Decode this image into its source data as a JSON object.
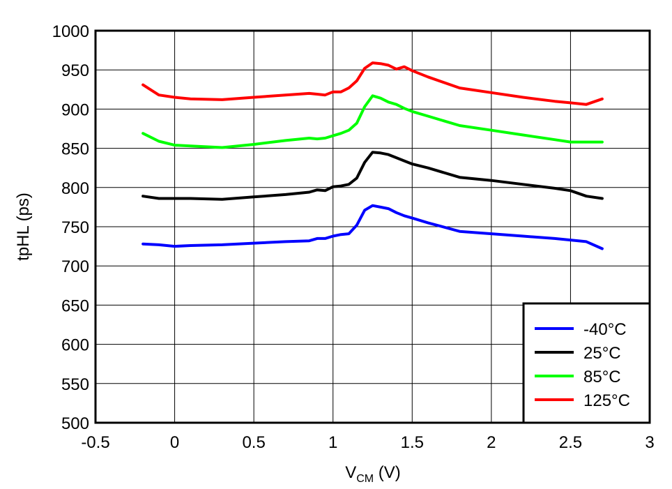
{
  "chart_data": {
    "type": "line",
    "xlabel_main": "V",
    "xlabel_sub": "CM",
    "xlabel_unit": " (V)",
    "ylabel": "tpHL (ps)",
    "xlim": [
      -0.5,
      3
    ],
    "ylim": [
      500,
      1000
    ],
    "xticks": [
      -0.5,
      0,
      0.5,
      1,
      1.5,
      2,
      2.5,
      3
    ],
    "xtick_labels": [
      "-0.5",
      "0",
      "0.5",
      "1",
      "1.5",
      "2",
      "2.5",
      "3"
    ],
    "yticks": [
      500,
      550,
      600,
      650,
      700,
      750,
      800,
      850,
      900,
      950,
      1000
    ],
    "ytick_labels": [
      "500",
      "550",
      "600",
      "650",
      "700",
      "750",
      "800",
      "850",
      "900",
      "950",
      "1000"
    ],
    "grid": true,
    "legend_position": "bottom-right",
    "series": [
      {
        "name": "-40°C",
        "color": "#0000ff",
        "x": [
          -0.2,
          -0.1,
          0,
          0.1,
          0.3,
          0.5,
          0.7,
          0.85,
          0.9,
          0.95,
          1.0,
          1.05,
          1.1,
          1.15,
          1.2,
          1.25,
          1.3,
          1.35,
          1.4,
          1.45,
          1.5,
          1.6,
          1.8,
          2.0,
          2.2,
          2.4,
          2.6,
          2.7
        ],
        "y": [
          728,
          727,
          725,
          726,
          727,
          729,
          731,
          732,
          735,
          735,
          738,
          740,
          741,
          752,
          771,
          777,
          775,
          773,
          768,
          764,
          761,
          755,
          744,
          741,
          738,
          735,
          731,
          722
        ]
      },
      {
        "name": "25°C",
        "color": "#000000",
        "x": [
          -0.2,
          -0.1,
          0,
          0.1,
          0.3,
          0.5,
          0.7,
          0.85,
          0.9,
          0.95,
          1.0,
          1.05,
          1.1,
          1.15,
          1.2,
          1.25,
          1.3,
          1.35,
          1.4,
          1.45,
          1.5,
          1.6,
          1.8,
          2.0,
          2.2,
          2.4,
          2.5,
          2.6,
          2.7
        ],
        "y": [
          789,
          786,
          786,
          786,
          785,
          788,
          791,
          794,
          797,
          796,
          801,
          802,
          804,
          812,
          832,
          845,
          844,
          842,
          838,
          834,
          830,
          825,
          813,
          809,
          804,
          799,
          796,
          789,
          786
        ]
      },
      {
        "name": "85°C",
        "color": "#00ff00",
        "x": [
          -0.2,
          -0.1,
          0,
          0.1,
          0.3,
          0.5,
          0.7,
          0.85,
          0.9,
          0.95,
          1.0,
          1.05,
          1.1,
          1.15,
          1.2,
          1.25,
          1.3,
          1.35,
          1.4,
          1.45,
          1.5,
          1.6,
          1.8,
          2.0,
          2.2,
          2.4,
          2.5,
          2.6,
          2.7
        ],
        "y": [
          869,
          859,
          854,
          853,
          851,
          855,
          860,
          863,
          862,
          863,
          866,
          869,
          873,
          882,
          903,
          917,
          914,
          909,
          906,
          901,
          897,
          891,
          879,
          873,
          867,
          861,
          858,
          858,
          858
        ]
      },
      {
        "name": "125°C",
        "color": "#ff0000",
        "x": [
          -0.2,
          -0.1,
          0,
          0.1,
          0.3,
          0.5,
          0.7,
          0.85,
          0.9,
          0.95,
          1.0,
          1.05,
          1.1,
          1.15,
          1.2,
          1.25,
          1.3,
          1.35,
          1.4,
          1.45,
          1.5,
          1.6,
          1.8,
          2.0,
          2.2,
          2.4,
          2.5,
          2.6,
          2.7
        ],
        "y": [
          931,
          918,
          915,
          913,
          912,
          915,
          918,
          920,
          919,
          918,
          922,
          922,
          927,
          936,
          952,
          959,
          958,
          956,
          951,
          954,
          949,
          941,
          927,
          921,
          915,
          910,
          908,
          906,
          913
        ]
      }
    ]
  }
}
